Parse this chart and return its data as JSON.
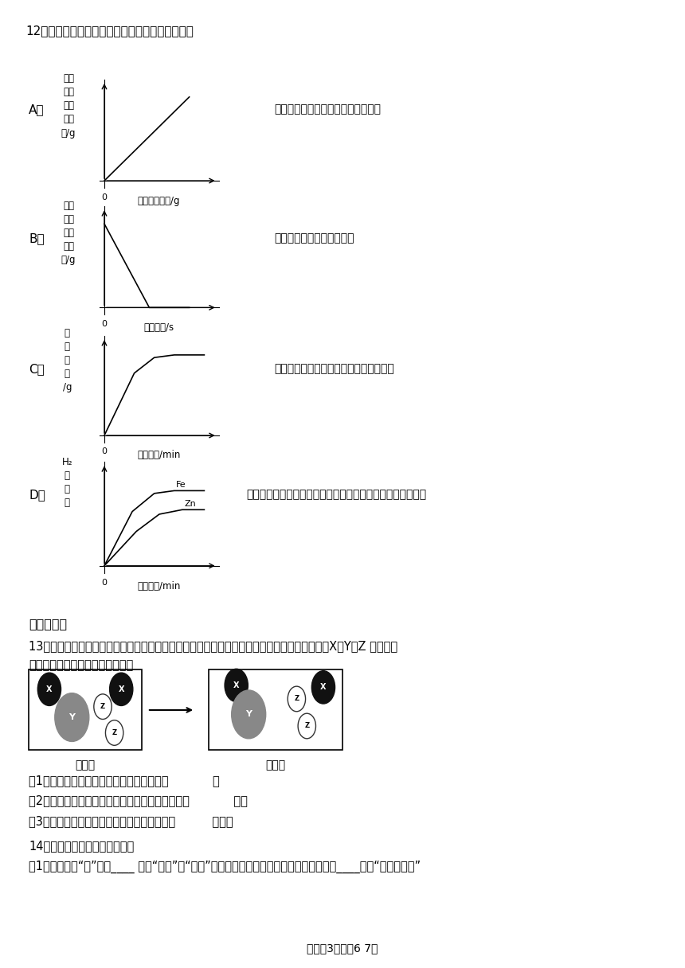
{
  "background_color": "#ffffff",
  "page_width": 8.6,
  "page_height": 12.16,
  "q12_text": "12．下列四个图象，能正确反映对应变化关系的是",
  "chartA_label": "A．",
  "chartA_ylabel": [
    "溶液",
    "中铁",
    "元素",
    "的质",
    "量/g"
  ],
  "chartA_xlabel": "氧化铁的质量/g",
  "chartA_desc": "表示向一定量的稀盐酸中加入氧化铁",
  "chartB_label": "B．",
  "chartB_ylabel": [
    "固体",
    "中氧",
    "元素",
    "的质",
    "量/g"
  ],
  "chartB_xlabel": "反应时间/s",
  "chartB_desc": "表示加热一定量的高锶酸钟",
  "chartC_label": "C．",
  "chartC_ylabel": [
    "沉",
    "淠",
    "质",
    "量",
    "/g"
  ],
  "chartC_xlabel": "反应时间/min",
  "chartC_desc": "表示向一定量的稀确酸中加入氯化钒溶液",
  "chartD_label": "D．",
  "chartD_ylabel": [
    "H₂",
    "的",
    "质",
    "量"
  ],
  "chartD_xlabel": "反应时间/min",
  "chartD_desc": "表示等质量的锶、铁分别与质量分数相等且足量的稀确酸反应",
  "chartD_fe_label": "Fe",
  "chartD_zn_label": "Zn",
  "section2_header": "二、填空题",
  "q13_text1": "13．走进化学变化的微观世界，有利于进一步认识化学变化。下图是某化学变化的微观示意图，X、Y、Z 分别表示",
  "q13_text2": "不同元素的原子，据图回答问题。",
  "q13_before": "反应前",
  "q13_after": "反应后",
  "q13_q1": "（1）反应过程中，生成物中分子的个数比为            。",
  "q13_q2": "（2）图中所示的四种物质中，可能属于氧化物的有            种。",
  "q13_q3": "（3）图中所示化学变化属于基本反应类型中的          反应。",
  "q14_text": "14．化学与人类生活密切相关。",
  "q14_q1a": "（1）加碗盐中“碗”是指____ （填“元素”或“分子”），身体中一旦缺碗，可能患有的疾病是____（填“甲状腺肿大”",
  "footer": "试卷第3页，兲6 7页"
}
